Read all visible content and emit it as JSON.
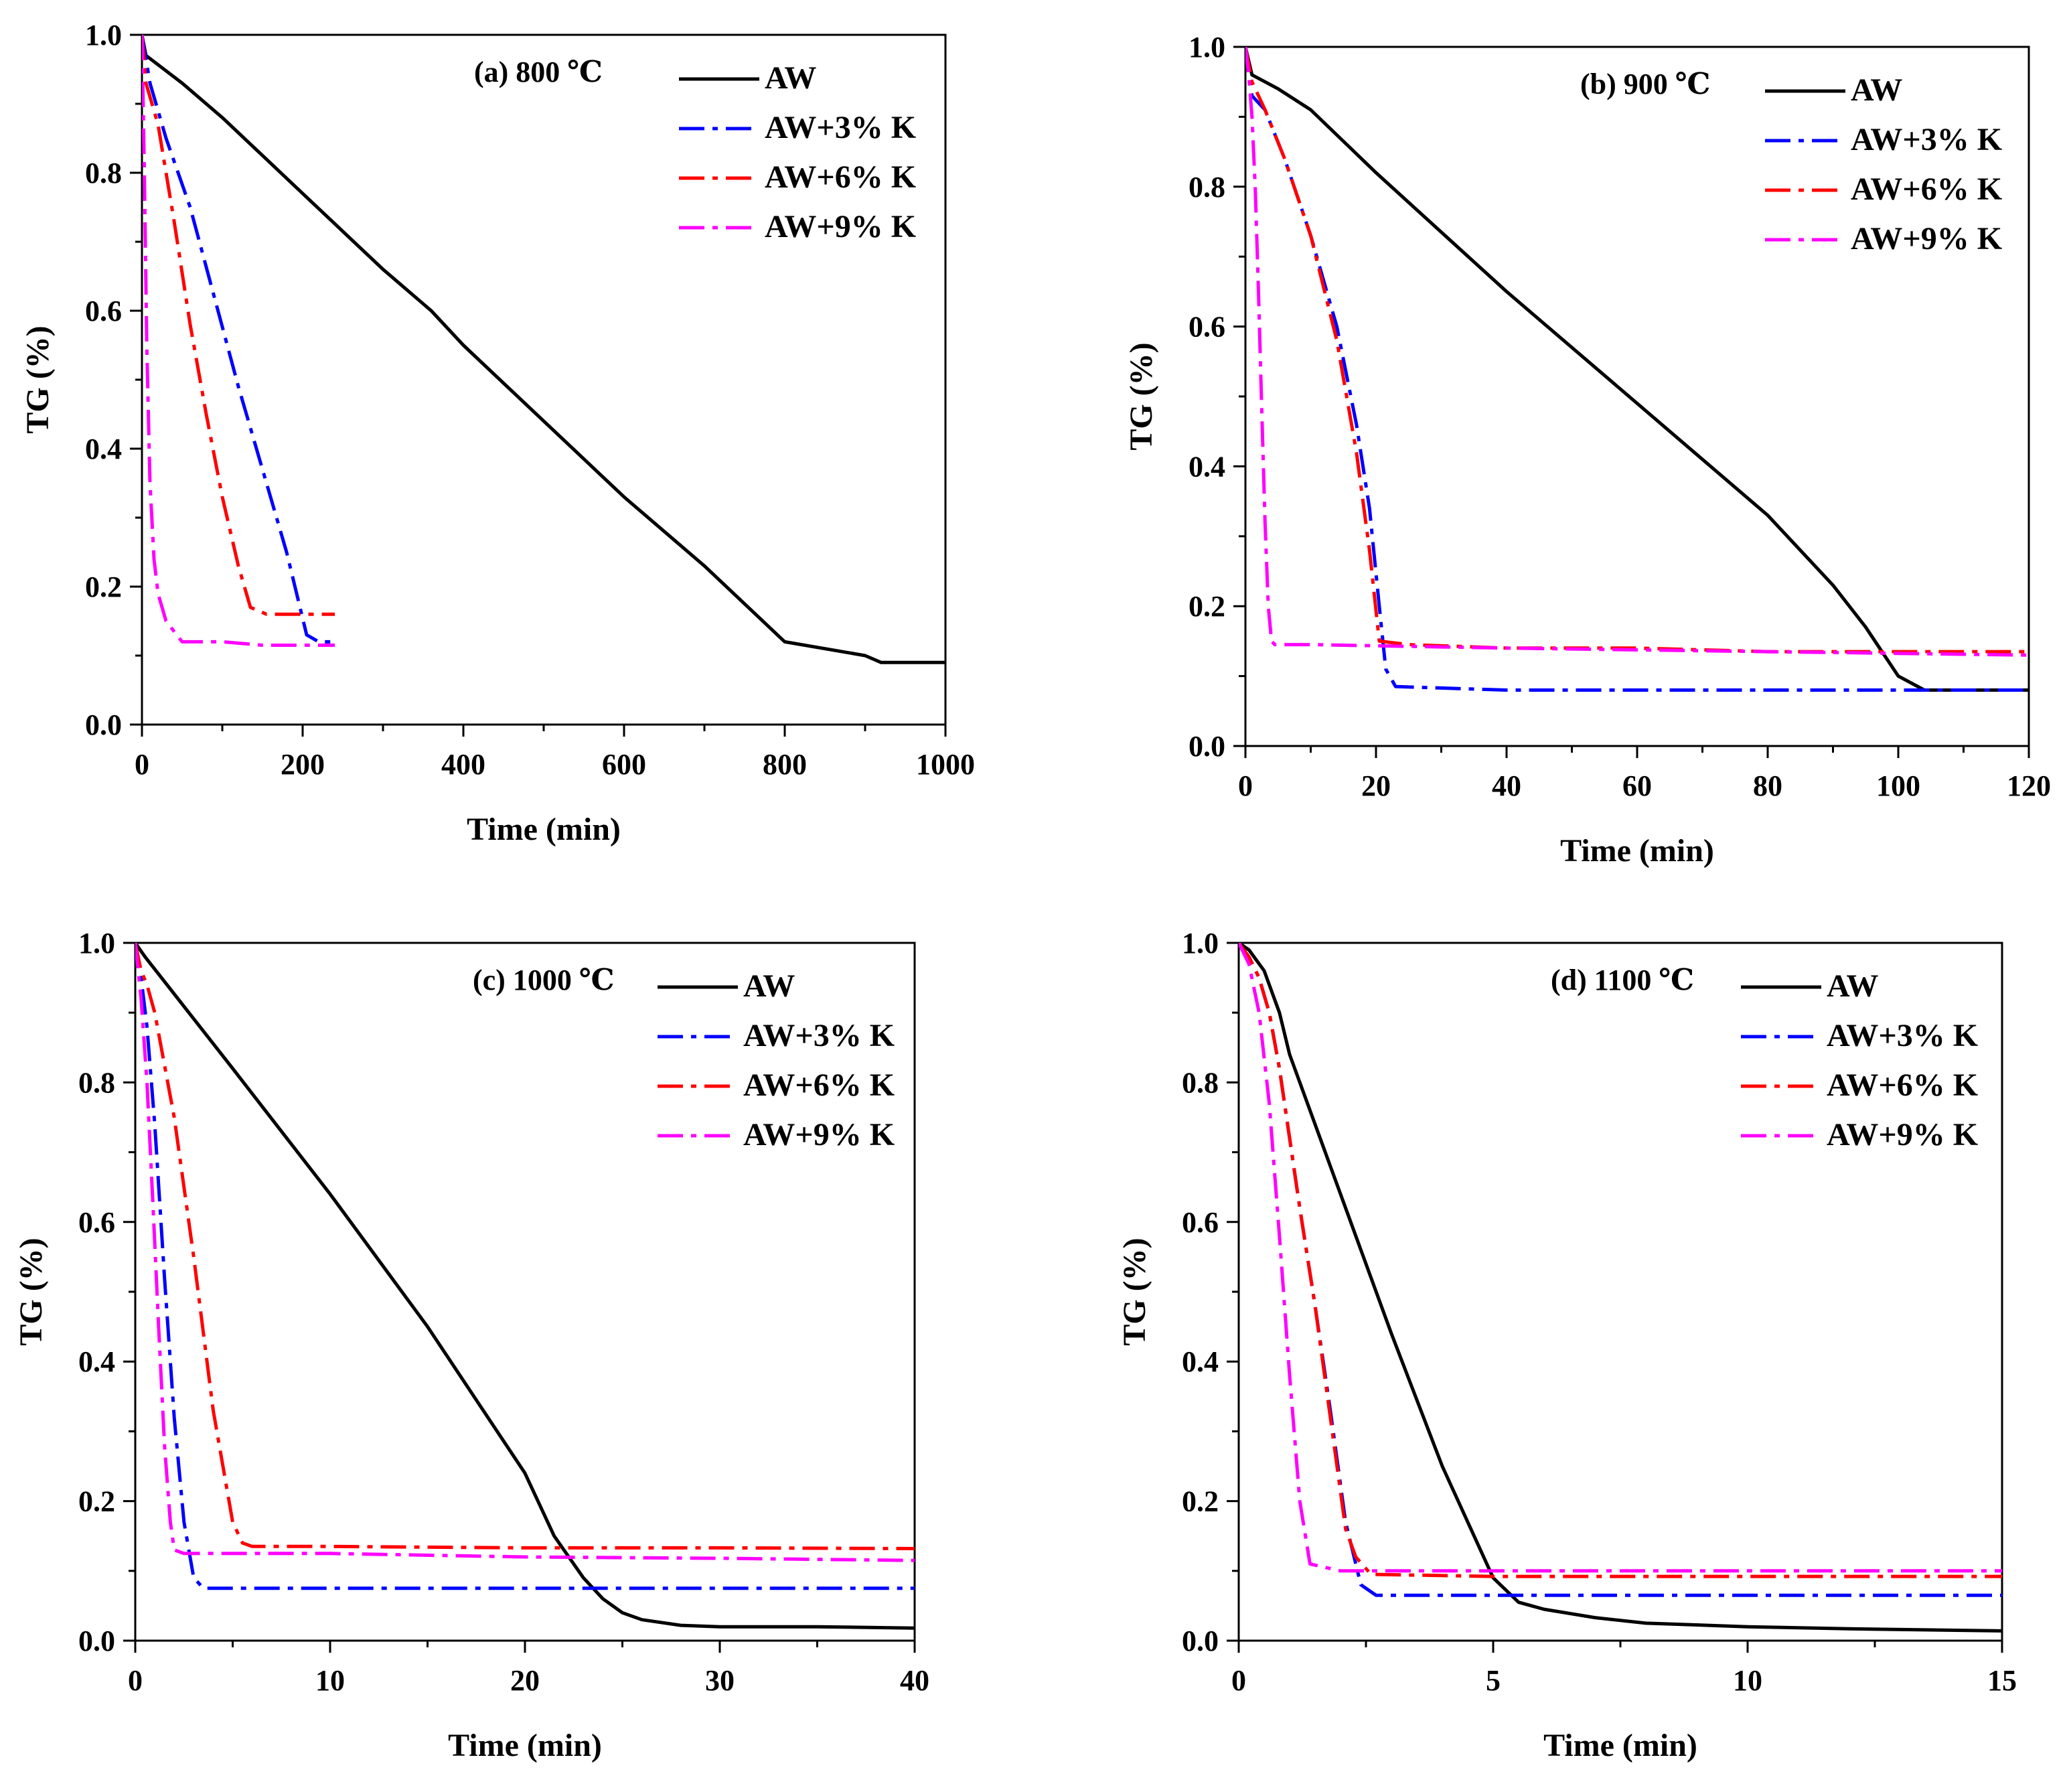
{
  "chart_data": [
    {
      "type": "line",
      "title": "(a) 800 ℃",
      "xlabel": "Time (min)",
      "ylabel": "TG (%)",
      "xlim": [
        0,
        1000
      ],
      "ylim": [
        0,
        1.0
      ],
      "xticks": [
        "0",
        "200",
        "400",
        "600",
        "800",
        "1000"
      ],
      "yticks": [
        "0.0",
        "0.2",
        "0.4",
        "0.6",
        "0.8",
        "1.0"
      ],
      "series": [
        {
          "name": "AW",
          "color": "#000000",
          "style": "solid",
          "x": [
            0,
            5,
            50,
            100,
            200,
            300,
            360,
            400,
            500,
            600,
            700,
            800,
            900,
            920,
            930,
            1000
          ],
          "y": [
            1.0,
            0.97,
            0.93,
            0.88,
            0.77,
            0.66,
            0.6,
            0.55,
            0.44,
            0.33,
            0.23,
            0.12,
            0.1,
            0.09,
            0.09,
            0.09
          ]
        },
        {
          "name": "AW+3% K",
          "color": "#0000ff",
          "style": "dashdot",
          "x": [
            0,
            10,
            30,
            60,
            90,
            120,
            150,
            180,
            205,
            220,
            240
          ],
          "y": [
            1.0,
            0.93,
            0.85,
            0.75,
            0.62,
            0.49,
            0.37,
            0.25,
            0.13,
            0.12,
            0.12
          ]
        },
        {
          "name": "AW+6% K",
          "color": "#ff0000",
          "style": "dashdot",
          "x": [
            0,
            5,
            20,
            40,
            60,
            80,
            100,
            120,
            135,
            155,
            200,
            240
          ],
          "y": [
            1.0,
            0.93,
            0.87,
            0.73,
            0.58,
            0.45,
            0.33,
            0.23,
            0.17,
            0.16,
            0.16,
            0.16
          ]
        },
        {
          "name": "AW+9% K",
          "color": "#ff00ff",
          "style": "dashdot",
          "x": [
            0,
            3,
            6,
            10,
            15,
            20,
            30,
            50,
            100,
            150,
            200,
            240
          ],
          "y": [
            1.0,
            0.8,
            0.55,
            0.35,
            0.24,
            0.19,
            0.15,
            0.12,
            0.12,
            0.115,
            0.115,
            0.115
          ]
        }
      ]
    },
    {
      "type": "line",
      "title": "(b) 900 ℃",
      "xlabel": "Time (min)",
      "ylabel": "TG (%)",
      "xlim": [
        0,
        120
      ],
      "ylim": [
        0,
        1.0
      ],
      "xticks": [
        "0",
        "20",
        "40",
        "60",
        "80",
        "100",
        "120"
      ],
      "yticks": [
        "0.0",
        "0.2",
        "0.4",
        "0.6",
        "0.8",
        "1.0"
      ],
      "series": [
        {
          "name": "AW",
          "color": "#000000",
          "style": "solid",
          "x": [
            0,
            1,
            5,
            10,
            20,
            40,
            60,
            80,
            90,
            95,
            100,
            104,
            110,
            120
          ],
          "y": [
            1.0,
            0.96,
            0.94,
            0.91,
            0.82,
            0.65,
            0.49,
            0.33,
            0.23,
            0.17,
            0.1,
            0.08,
            0.08,
            0.08
          ]
        },
        {
          "name": "AW+3% K",
          "color": "#0000ff",
          "style": "dashdot",
          "x": [
            0,
            1,
            3,
            6,
            10,
            14,
            17,
            19,
            20.5,
            21.5,
            23,
            40,
            60,
            80,
            100,
            120
          ],
          "y": [
            1.0,
            0.93,
            0.91,
            0.84,
            0.73,
            0.6,
            0.46,
            0.34,
            0.2,
            0.11,
            0.085,
            0.08,
            0.08,
            0.08,
            0.08,
            0.08
          ]
        },
        {
          "name": "AW+6% K",
          "color": "#ff0000",
          "style": "dashdot",
          "x": [
            0,
            1,
            3,
            6,
            10,
            14,
            17,
            19,
            20.5,
            25,
            40,
            60,
            80,
            100,
            120
          ],
          "y": [
            1.0,
            0.95,
            0.91,
            0.84,
            0.73,
            0.58,
            0.42,
            0.28,
            0.15,
            0.145,
            0.14,
            0.14,
            0.135,
            0.135,
            0.135
          ]
        },
        {
          "name": "AW+9% K",
          "color": "#ff00ff",
          "style": "dashdot",
          "x": [
            0,
            0.5,
            1,
            1.5,
            2,
            2.5,
            3,
            3.5,
            4,
            4.5,
            10,
            40,
            80,
            120
          ],
          "y": [
            1.0,
            0.96,
            0.9,
            0.8,
            0.65,
            0.48,
            0.32,
            0.2,
            0.15,
            0.145,
            0.145,
            0.14,
            0.135,
            0.13
          ]
        }
      ]
    },
    {
      "type": "line",
      "title": "(c) 1000 ℃",
      "xlabel": "Time (min)",
      "ylabel": "TG (%)",
      "xlim": [
        0,
        40
      ],
      "ylim": [
        0,
        1.0
      ],
      "xticks": [
        "0",
        "10",
        "20",
        "30",
        "40"
      ],
      "yticks": [
        "0.0",
        "0.2",
        "0.4",
        "0.6",
        "0.8",
        "1.0"
      ],
      "series": [
        {
          "name": "AW",
          "color": "#000000",
          "style": "solid",
          "x": [
            0,
            0.5,
            5,
            10,
            15,
            20,
            21.5,
            23,
            24,
            25,
            26,
            28,
            30,
            35,
            40
          ],
          "y": [
            1.0,
            0.98,
            0.82,
            0.64,
            0.45,
            0.24,
            0.15,
            0.09,
            0.06,
            0.04,
            0.03,
            0.022,
            0.02,
            0.02,
            0.018
          ]
        },
        {
          "name": "AW+3% K",
          "color": "#0000ff",
          "style": "dashdot",
          "x": [
            0,
            0.3,
            0.6,
            1.0,
            1.5,
            2.0,
            2.5,
            3.0,
            3.5,
            10,
            20,
            30,
            40
          ],
          "y": [
            1.0,
            0.95,
            0.88,
            0.74,
            0.52,
            0.32,
            0.17,
            0.09,
            0.075,
            0.075,
            0.075,
            0.075,
            0.075
          ]
        },
        {
          "name": "AW+6% K",
          "color": "#ff0000",
          "style": "dashdot",
          "x": [
            0,
            0.3,
            0.6,
            1.0,
            2.0,
            3.0,
            4.0,
            5.0,
            5.5,
            6.0,
            10,
            20,
            30,
            40
          ],
          "y": [
            1.0,
            0.96,
            0.94,
            0.9,
            0.75,
            0.55,
            0.33,
            0.17,
            0.14,
            0.135,
            0.135,
            0.133,
            0.133,
            0.132
          ]
        },
        {
          "name": "AW+9% K",
          "color": "#ff00ff",
          "style": "dashdot",
          "x": [
            0,
            0.3,
            0.6,
            0.9,
            1.2,
            1.5,
            1.8,
            2.0,
            2.5,
            5,
            10,
            20,
            30,
            40
          ],
          "y": [
            1.0,
            0.92,
            0.8,
            0.63,
            0.45,
            0.28,
            0.17,
            0.13,
            0.125,
            0.125,
            0.125,
            0.12,
            0.118,
            0.115
          ]
        }
      ]
    },
    {
      "type": "line",
      "title": "(d) 1100 ℃",
      "xlabel": "Time (min)",
      "ylabel": "TG (%)",
      "xlim": [
        0,
        15
      ],
      "ylim": [
        0,
        1.0
      ],
      "xticks": [
        "0",
        "5",
        "10",
        "15"
      ],
      "yticks": [
        "0.0",
        "0.2",
        "0.4",
        "0.6",
        "0.8",
        "1.0"
      ],
      "series": [
        {
          "name": "AW",
          "color": "#000000",
          "style": "solid",
          "x": [
            0,
            0.2,
            0.5,
            0.8,
            1,
            2,
            3,
            4,
            5,
            5.5,
            6,
            7,
            8,
            10,
            12,
            15
          ],
          "y": [
            1.0,
            0.99,
            0.96,
            0.9,
            0.84,
            0.64,
            0.44,
            0.25,
            0.09,
            0.055,
            0.045,
            0.033,
            0.025,
            0.02,
            0.017,
            0.014
          ]
        },
        {
          "name": "AW+3% K",
          "color": "#0000ff",
          "style": "dashdot",
          "x": [
            0,
            0.2,
            0.4,
            0.6,
            0.8,
            1.0,
            1.2,
            1.5,
            1.8,
            2.1,
            2.4,
            2.7,
            5,
            10,
            15
          ],
          "y": [
            1.0,
            0.98,
            0.95,
            0.9,
            0.82,
            0.72,
            0.62,
            0.48,
            0.33,
            0.17,
            0.08,
            0.065,
            0.065,
            0.065,
            0.065
          ]
        },
        {
          "name": "AW+6% K",
          "color": "#ff0000",
          "style": "dashdot",
          "x": [
            0,
            0.2,
            0.4,
            0.6,
            0.8,
            1.0,
            1.2,
            1.5,
            1.8,
            2.1,
            2.3,
            2.6,
            5,
            10,
            15
          ],
          "y": [
            1.0,
            0.98,
            0.95,
            0.9,
            0.82,
            0.72,
            0.62,
            0.48,
            0.32,
            0.16,
            0.12,
            0.095,
            0.092,
            0.092,
            0.092
          ]
        },
        {
          "name": "AW+9% K",
          "color": "#ff00ff",
          "style": "dashdot",
          "x": [
            0,
            0.2,
            0.4,
            0.6,
            0.8,
            1.0,
            1.2,
            1.4,
            2.0,
            5,
            10,
            15
          ],
          "y": [
            1.0,
            0.97,
            0.9,
            0.77,
            0.58,
            0.38,
            0.2,
            0.11,
            0.1,
            0.1,
            0.1,
            0.1
          ]
        }
      ]
    }
  ]
}
